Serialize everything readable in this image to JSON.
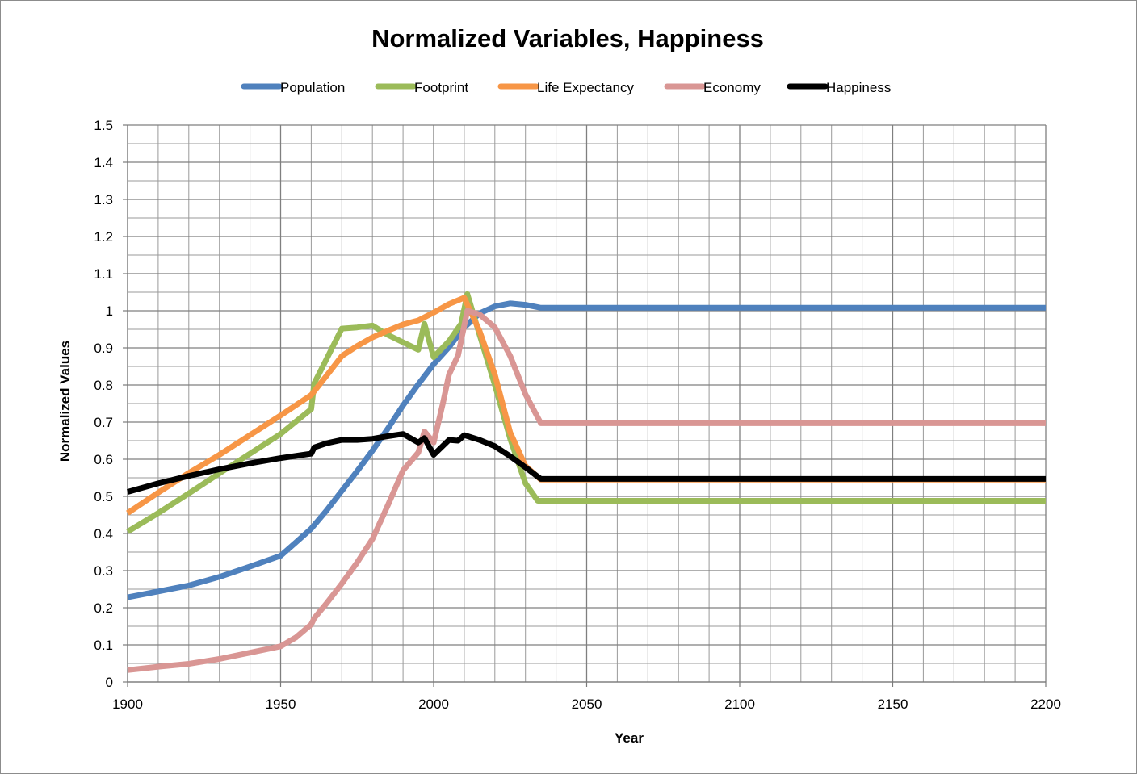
{
  "chart_data": {
    "type": "line",
    "title": "Normalized Variables, Happiness",
    "xlabel": "Year",
    "ylabel": "Normalized Values",
    "xlim": [
      1900,
      2200
    ],
    "ylim": [
      0,
      1.5
    ],
    "x_ticks": [
      1900,
      1950,
      2000,
      2050,
      2100,
      2150,
      2200
    ],
    "y_ticks": [
      0,
      0.1,
      0.2,
      0.3,
      0.4,
      0.5,
      0.6,
      0.7,
      0.8,
      0.9,
      1,
      1.1,
      1.2,
      1.3,
      1.4,
      1.5
    ],
    "x_minor_step": 10,
    "y_minor_step": 0.05,
    "legend_position": "top",
    "series": [
      {
        "name": "Population",
        "color": "#4f81bd",
        "points": [
          [
            1900,
            0.228
          ],
          [
            1910,
            0.244
          ],
          [
            1920,
            0.26
          ],
          [
            1930,
            0.283
          ],
          [
            1940,
            0.311
          ],
          [
            1950,
            0.34
          ],
          [
            1955,
            0.376
          ],
          [
            1960,
            0.413
          ],
          [
            1965,
            0.462
          ],
          [
            1970,
            0.515
          ],
          [
            1975,
            0.568
          ],
          [
            1980,
            0.623
          ],
          [
            1985,
            0.682
          ],
          [
            1990,
            0.745
          ],
          [
            1995,
            0.802
          ],
          [
            2000,
            0.856
          ],
          [
            2005,
            0.902
          ],
          [
            2010,
            0.955
          ],
          [
            2015,
            0.993
          ],
          [
            2020,
            1.012
          ],
          [
            2025,
            1.02
          ],
          [
            2030,
            1.016
          ],
          [
            2035,
            1.008
          ],
          [
            2040,
            1.008
          ],
          [
            2200,
            1.008
          ]
        ]
      },
      {
        "name": "Footprint",
        "color": "#9bbb59",
        "points": [
          [
            1900,
            0.405
          ],
          [
            1910,
            0.455
          ],
          [
            1920,
            0.508
          ],
          [
            1930,
            0.562
          ],
          [
            1940,
            0.615
          ],
          [
            1950,
            0.668
          ],
          [
            1960,
            0.735
          ],
          [
            1961,
            0.805
          ],
          [
            1965,
            0.87
          ],
          [
            1970,
            0.952
          ],
          [
            1975,
            0.955
          ],
          [
            1980,
            0.96
          ],
          [
            1985,
            0.935
          ],
          [
            1990,
            0.915
          ],
          [
            1995,
            0.895
          ],
          [
            1997,
            0.965
          ],
          [
            2000,
            0.875
          ],
          [
            2005,
            0.918
          ],
          [
            2009,
            0.965
          ],
          [
            2011,
            1.045
          ],
          [
            2015,
            0.935
          ],
          [
            2020,
            0.8
          ],
          [
            2025,
            0.655
          ],
          [
            2030,
            0.535
          ],
          [
            2034,
            0.488
          ],
          [
            2040,
            0.488
          ],
          [
            2200,
            0.488
          ]
        ]
      },
      {
        "name": "Life Expectancy",
        "color": "#f79646",
        "points": [
          [
            1900,
            0.455
          ],
          [
            1910,
            0.51
          ],
          [
            1920,
            0.563
          ],
          [
            1930,
            0.612
          ],
          [
            1940,
            0.665
          ],
          [
            1950,
            0.718
          ],
          [
            1960,
            0.773
          ],
          [
            1965,
            0.825
          ],
          [
            1970,
            0.878
          ],
          [
            1975,
            0.905
          ],
          [
            1980,
            0.928
          ],
          [
            1985,
            0.946
          ],
          [
            1990,
            0.963
          ],
          [
            1995,
            0.974
          ],
          [
            2000,
            0.995
          ],
          [
            2005,
            1.018
          ],
          [
            2010,
            1.035
          ],
          [
            2015,
            0.945
          ],
          [
            2020,
            0.828
          ],
          [
            2025,
            0.672
          ],
          [
            2030,
            0.582
          ],
          [
            2035,
            0.545
          ],
          [
            2200,
            0.545
          ]
        ]
      },
      {
        "name": "Economy",
        "color": "#d99694",
        "points": [
          [
            1900,
            0.032
          ],
          [
            1910,
            0.041
          ],
          [
            1920,
            0.049
          ],
          [
            1930,
            0.062
          ],
          [
            1940,
            0.079
          ],
          [
            1950,
            0.096
          ],
          [
            1955,
            0.12
          ],
          [
            1960,
            0.155
          ],
          [
            1961,
            0.172
          ],
          [
            1965,
            0.212
          ],
          [
            1970,
            0.265
          ],
          [
            1975,
            0.322
          ],
          [
            1980,
            0.385
          ],
          [
            1985,
            0.475
          ],
          [
            1990,
            0.57
          ],
          [
            1995,
            0.618
          ],
          [
            1997,
            0.675
          ],
          [
            2000,
            0.645
          ],
          [
            2003,
            0.75
          ],
          [
            2005,
            0.828
          ],
          [
            2008,
            0.88
          ],
          [
            2011,
            1.0
          ],
          [
            2015,
            0.99
          ],
          [
            2020,
            0.955
          ],
          [
            2025,
            0.878
          ],
          [
            2030,
            0.775
          ],
          [
            2035,
            0.697
          ],
          [
            2040,
            0.697
          ],
          [
            2200,
            0.697
          ]
        ]
      },
      {
        "name": "Happiness",
        "color": "#000000",
        "points": [
          [
            1900,
            0.512
          ],
          [
            1910,
            0.535
          ],
          [
            1920,
            0.555
          ],
          [
            1930,
            0.573
          ],
          [
            1940,
            0.589
          ],
          [
            1950,
            0.603
          ],
          [
            1960,
            0.615
          ],
          [
            1961,
            0.632
          ],
          [
            1965,
            0.643
          ],
          [
            1970,
            0.652
          ],
          [
            1975,
            0.652
          ],
          [
            1980,
            0.655
          ],
          [
            1985,
            0.662
          ],
          [
            1990,
            0.668
          ],
          [
            1995,
            0.645
          ],
          [
            1997,
            0.657
          ],
          [
            2000,
            0.612
          ],
          [
            2005,
            0.652
          ],
          [
            2008,
            0.65
          ],
          [
            2010,
            0.665
          ],
          [
            2015,
            0.652
          ],
          [
            2020,
            0.635
          ],
          [
            2025,
            0.608
          ],
          [
            2030,
            0.578
          ],
          [
            2035,
            0.547
          ],
          [
            2040,
            0.547
          ],
          [
            2200,
            0.547
          ]
        ]
      }
    ]
  }
}
